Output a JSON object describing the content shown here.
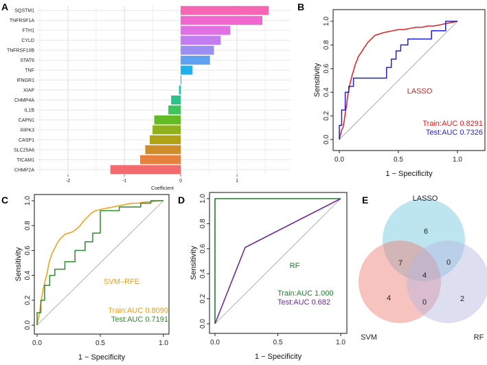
{
  "panels": {
    "a": {
      "letter": "A"
    },
    "b": {
      "letter": "B"
    },
    "c": {
      "letter": "C"
    },
    "d": {
      "letter": "D"
    },
    "e": {
      "letter": "E"
    }
  },
  "chart_data": [
    {
      "id": "A",
      "type": "bar",
      "orientation": "horizontal",
      "xlabel": "Coefficient",
      "xlim": [
        -2.55,
        1.95
      ],
      "xticks": [
        -2,
        -1,
        0,
        1
      ],
      "grid": true,
      "categories": [
        "SQSTM1",
        "TNFRSF1A",
        "FTH1",
        "CYLD",
        "TNFRSF10B",
        "STAT6",
        "TNF",
        "IFNGR1",
        "XIAP",
        "CHMP4A",
        "IL1B",
        "CAPN1",
        "RIPK3",
        "CASP1",
        "SLC25A6",
        "TICAM1",
        "CHMP2A"
      ],
      "values": [
        1.56,
        1.45,
        0.88,
        0.71,
        0.59,
        0.52,
        0.21,
        0.01,
        -0.03,
        -0.17,
        -0.22,
        -0.47,
        -0.5,
        -0.55,
        -0.63,
        -0.72,
        -1.25
      ],
      "colors": [
        "#f766b5",
        "#f067cf",
        "#e070e3",
        "#c47df0",
        "#9b8ef3",
        "#61a1f2",
        "#1fb1eb",
        "#10bad8",
        "#14c2b6",
        "#2cc38a",
        "#3ec35d",
        "#64bb24",
        "#8fb21c",
        "#b1a317",
        "#d08e2a",
        "#e7823e",
        "#f46b6e"
      ]
    },
    {
      "id": "B",
      "type": "line",
      "xlabel": "1 − Specificity",
      "ylabel": "Sensitivity",
      "xlim": [
        0,
        1
      ],
      "ylim": [
        0,
        1
      ],
      "xticks": [
        "0.0",
        "0.5",
        "1.0"
      ],
      "yticks": [
        "0.0",
        "0.2",
        "0.4",
        "0.6",
        "0.8",
        "1.0"
      ],
      "annotation": "LASSO",
      "series": [
        {
          "name": "Train",
          "color": "#e31a1c",
          "label": "Train:AUC 0.8291",
          "x": [
            0,
            0.01,
            0.02,
            0.03,
            0.04,
            0.05,
            0.06,
            0.07,
            0.08,
            0.09,
            0.1,
            0.11,
            0.12,
            0.13,
            0.14,
            0.15,
            0.16,
            0.18,
            0.2,
            0.22,
            0.24,
            0.26,
            0.28,
            0.3,
            0.33,
            0.36,
            0.4,
            0.45,
            0.5,
            0.55,
            0.6,
            0.65,
            0.7,
            0.75,
            0.8,
            0.85,
            0.9,
            1
          ],
          "y": [
            0,
            0.04,
            0.08,
            0.1,
            0.15,
            0.22,
            0.28,
            0.36,
            0.42,
            0.47,
            0.51,
            0.55,
            0.58,
            0.62,
            0.65,
            0.67,
            0.7,
            0.73,
            0.76,
            0.79,
            0.82,
            0.84,
            0.86,
            0.88,
            0.89,
            0.9,
            0.91,
            0.92,
            0.93,
            0.93,
            0.94,
            0.95,
            0.95,
            0.96,
            0.96,
            0.97,
            0.98,
            1
          ]
        },
        {
          "name": "Test",
          "color": "#1f1fd1",
          "label": "Test:AUC 0.7326",
          "x": [
            0,
            0,
            0.02,
            0.02,
            0.05,
            0.05,
            0.08,
            0.08,
            0.12,
            0.12,
            0.4,
            0.4,
            0.44,
            0.44,
            0.48,
            0.48,
            0.52,
            0.52,
            0.58,
            0.58,
            0.78,
            0.78,
            0.9,
            0.9,
            1
          ],
          "y": [
            0,
            0.12,
            0.12,
            0.25,
            0.25,
            0.4,
            0.4,
            0.45,
            0.45,
            0.52,
            0.52,
            0.61,
            0.61,
            0.68,
            0.68,
            0.75,
            0.75,
            0.8,
            0.8,
            0.85,
            0.85,
            0.92,
            0.92,
            1,
            1
          ]
        }
      ]
    },
    {
      "id": "C",
      "type": "line",
      "xlabel": "1 − Specificity",
      "ylabel": "Sensitivity",
      "xlim": [
        0,
        1
      ],
      "ylim": [
        0,
        1
      ],
      "xticks": [
        "0.0",
        "0.5",
        "1.0"
      ],
      "yticks": [
        "0.0",
        "0.2",
        "0.4",
        "0.6",
        "0.8",
        "1.0"
      ],
      "annotation": "SVM–RFE",
      "series": [
        {
          "name": "Train",
          "color": "#f39c12",
          "label": "Train:AUC 0.8090",
          "x": [
            0,
            0.01,
            0.02,
            0.03,
            0.04,
            0.05,
            0.06,
            0.07,
            0.08,
            0.09,
            0.1,
            0.12,
            0.14,
            0.16,
            0.18,
            0.2,
            0.22,
            0.25,
            0.28,
            0.31,
            0.34,
            0.37,
            0.4,
            0.43,
            0.46,
            0.5,
            0.55,
            0.6,
            0.65,
            0.7,
            0.75,
            0.8,
            0.85,
            0.9,
            0.95,
            1
          ],
          "y": [
            0,
            0.05,
            0.1,
            0.18,
            0.24,
            0.3,
            0.34,
            0.38,
            0.42,
            0.48,
            0.52,
            0.58,
            0.62,
            0.66,
            0.69,
            0.71,
            0.73,
            0.74,
            0.75,
            0.77,
            0.8,
            0.84,
            0.87,
            0.9,
            0.92,
            0.93,
            0.94,
            0.95,
            0.96,
            0.97,
            0.98,
            0.98,
            0.99,
            0.99,
            1,
            1
          ]
        },
        {
          "name": "Test",
          "color": "#2d8a2d",
          "label": "Test:AUC 0.7191",
          "x": [
            0,
            0,
            0.03,
            0.03,
            0.06,
            0.06,
            0.1,
            0.1,
            0.14,
            0.14,
            0.22,
            0.22,
            0.3,
            0.3,
            0.38,
            0.38,
            0.44,
            0.44,
            0.5,
            0.5,
            0.65,
            0.65,
            0.82,
            0.82,
            0.9,
            0.9,
            1
          ],
          "y": [
            0,
            0.1,
            0.1,
            0.2,
            0.2,
            0.32,
            0.32,
            0.4,
            0.4,
            0.45,
            0.45,
            0.51,
            0.51,
            0.6,
            0.6,
            0.67,
            0.67,
            0.74,
            0.74,
            0.92,
            0.92,
            0.95,
            0.95,
            0.98,
            0.98,
            1,
            1
          ]
        }
      ]
    },
    {
      "id": "D",
      "type": "line",
      "xlabel": "1 − Specificity",
      "ylabel": "Sensitivity",
      "xlim": [
        0,
        1
      ],
      "ylim": [
        0,
        1
      ],
      "xticks": [
        "0.0",
        "0.5",
        "1.0"
      ],
      "yticks": [
        "0.0",
        "0.2",
        "0.4",
        "0.6",
        "0.8",
        "1.0"
      ],
      "annotation": "RF",
      "series": [
        {
          "name": "Train",
          "color": "#1e7b2e",
          "label": "Train:AUC 1.000",
          "x": [
            0,
            0,
            1
          ],
          "y": [
            0,
            1,
            1
          ]
        },
        {
          "name": "Test",
          "color": "#6a2c9c",
          "label": "Test:AUC 0.682",
          "x": [
            0,
            0.24,
            1
          ],
          "y": [
            0,
            0.61,
            1
          ]
        }
      ]
    },
    {
      "id": "E",
      "type": "venn",
      "sets": [
        {
          "name": "LASSO",
          "color": "#6cc6dd",
          "label_color": "#6ab0d8"
        },
        {
          "name": "SVM",
          "color": "#ec7b70",
          "label_color": "#e0554a"
        },
        {
          "name": "RF",
          "color": "#b6b6e0",
          "label_color": "#b0a6d8"
        }
      ],
      "regions": [
        {
          "sets": [
            "LASSO"
          ],
          "count": "6"
        },
        {
          "sets": [
            "LASSO",
            "SVM"
          ],
          "count": "7"
        },
        {
          "sets": [
            "LASSO",
            "RF"
          ],
          "count": "0"
        },
        {
          "sets": [
            "LASSO",
            "SVM",
            "RF"
          ],
          "count": "4"
        },
        {
          "sets": [
            "SVM"
          ],
          "count": "4"
        },
        {
          "sets": [
            "SVM",
            "RF"
          ],
          "count": "0"
        },
        {
          "sets": [
            "RF"
          ],
          "count": "2"
        }
      ]
    }
  ]
}
